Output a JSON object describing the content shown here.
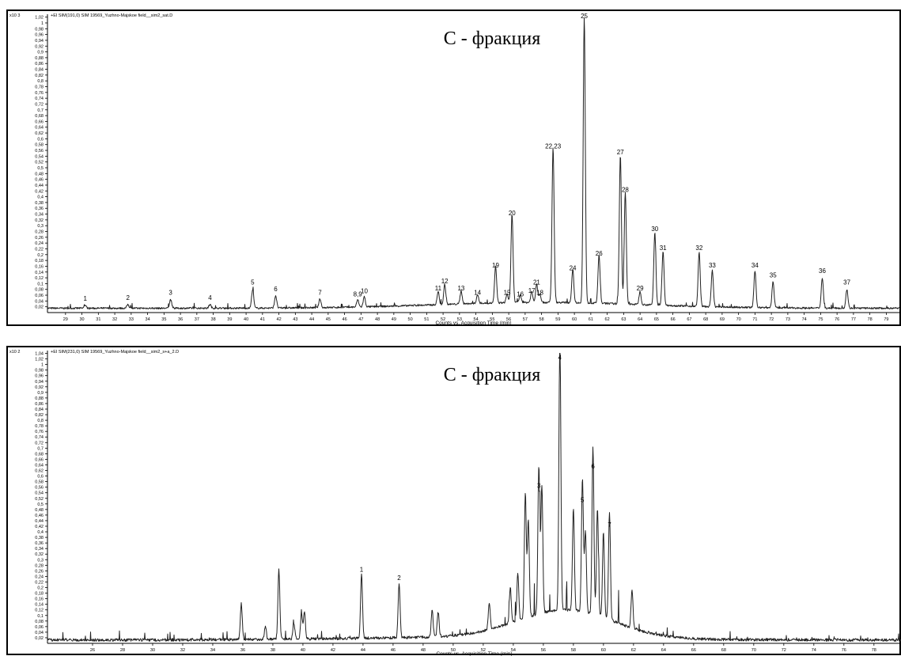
{
  "chart_data": [
    {
      "type": "line",
      "header": "+EI SIM(191,0) SIM 19569_Yuzhno-Majskoe field__sim2_sat.D",
      "exponent_label": "x10 3",
      "title": "С - фракция",
      "xlabel": "Counts vs. Acquisition Time (min)",
      "xlim": [
        27.9,
        79.8
      ],
      "ylim": [
        0,
        1.03
      ],
      "x_ticks": [
        29,
        30,
        31,
        32,
        33,
        34,
        35,
        36,
        37,
        38,
        39,
        40,
        41,
        42,
        43,
        44,
        45,
        46,
        47,
        48,
        49,
        50,
        51,
        52,
        53,
        54,
        55,
        56,
        57,
        58,
        59,
        60,
        61,
        62,
        63,
        64,
        65,
        66,
        67,
        68,
        69,
        70,
        71,
        72,
        73,
        74,
        75,
        76,
        77,
        78,
        79
      ],
      "y_ticks": [
        "0,02",
        "0,04",
        "0,06",
        "0,08",
        "0,1",
        "0,12",
        "0,14",
        "0,16",
        "0,18",
        "0,2",
        "0,22",
        "0,24",
        "0,26",
        "0,28",
        "0,3",
        "0,32",
        "0,34",
        "0,36",
        "0,38",
        "0,4",
        "0,42",
        "0,44",
        "0,46",
        "0,48",
        "0,5",
        "0,52",
        "0,54",
        "0,56",
        "0,58",
        "0,6",
        "0,62",
        "0,64",
        "0,66",
        "0,68",
        "0,7",
        "0,72",
        "0,74",
        "0,76",
        "0,78",
        "0,8",
        "0,82",
        "0,84",
        "0,86",
        "0,88",
        "0,9",
        "0,92",
        "0,94",
        "0,96",
        "0,98",
        "1",
        "1,02"
      ],
      "baseline": 0.015,
      "peaks": [
        {
          "label": "1",
          "x": 30.2,
          "y": 0.025
        },
        {
          "label": "2",
          "x": 32.8,
          "y": 0.028
        },
        {
          "label": "3",
          "x": 35.4,
          "y": 0.045
        },
        {
          "label": "4",
          "x": 37.8,
          "y": 0.028
        },
        {
          "label": "5",
          "x": 40.4,
          "y": 0.08
        },
        {
          "label": "6",
          "x": 41.8,
          "y": 0.058
        },
        {
          "label": "7",
          "x": 44.5,
          "y": 0.045
        },
        {
          "label": "8,9",
          "x": 46.8,
          "y": 0.04
        },
        {
          "label": "10",
          "x": 47.2,
          "y": 0.05
        },
        {
          "label": "11",
          "x": 51.7,
          "y": 0.06
        },
        {
          "label": "12",
          "x": 52.1,
          "y": 0.085
        },
        {
          "label": "13",
          "x": 53.1,
          "y": 0.06
        },
        {
          "label": "14",
          "x": 54.1,
          "y": 0.045
        },
        {
          "label": "15",
          "x": 55.9,
          "y": 0.045
        },
        {
          "label": "16",
          "x": 56.7,
          "y": 0.04
        },
        {
          "label": "17",
          "x": 57.4,
          "y": 0.052
        },
        {
          "label": "18",
          "x": 57.9,
          "y": 0.045
        },
        {
          "label": "19",
          "x": 55.2,
          "y": 0.14
        },
        {
          "label": "20",
          "x": 56.2,
          "y": 0.32
        },
        {
          "label": "21",
          "x": 57.7,
          "y": 0.08
        },
        {
          "label": "22.23",
          "x": 58.7,
          "y": 0.55
        },
        {
          "label": "24",
          "x": 59.9,
          "y": 0.13
        },
        {
          "label": "25",
          "x": 60.6,
          "y": 1.0
        },
        {
          "label": "26",
          "x": 61.5,
          "y": 0.18
        },
        {
          "label": "27",
          "x": 62.8,
          "y": 0.53
        },
        {
          "label": "28",
          "x": 63.1,
          "y": 0.4
        },
        {
          "label": "29",
          "x": 64.0,
          "y": 0.06
        },
        {
          "label": "30",
          "x": 64.9,
          "y": 0.265
        },
        {
          "label": "31",
          "x": 65.4,
          "y": 0.2
        },
        {
          "label": "32",
          "x": 67.6,
          "y": 0.2
        },
        {
          "label": "33",
          "x": 68.4,
          "y": 0.14
        },
        {
          "label": "34",
          "x": 71.0,
          "y": 0.14
        },
        {
          "label": "35",
          "x": 72.1,
          "y": 0.105
        },
        {
          "label": "36",
          "x": 75.1,
          "y": 0.12
        },
        {
          "label": "37",
          "x": 76.6,
          "y": 0.08
        }
      ]
    },
    {
      "type": "line",
      "header": "+EI SIM(231,0) SIM 19569_Yuzhno-Majskoe field__sim2_s+a_2.D",
      "exponent_label": "x10 2",
      "title": "С - фракция",
      "xlabel": "Counts vs. Acquisition Time (min)",
      "xlim": [
        23.0,
        79.8
      ],
      "ylim": [
        0,
        1.05
      ],
      "x_ticks": [
        26,
        28,
        30,
        32,
        34,
        36,
        38,
        40,
        42,
        44,
        46,
        48,
        50,
        52,
        54,
        56,
        58,
        60,
        62,
        64,
        66,
        68,
        70,
        72,
        74,
        76,
        78
      ],
      "y_ticks": [
        "0,02",
        "0,04",
        "0,06",
        "0,08",
        "0,1",
        "0,12",
        "0,14",
        "0,16",
        "0,18",
        "0,2",
        "0,22",
        "0,24",
        "0,26",
        "0,28",
        "0,3",
        "0,32",
        "0,34",
        "0,36",
        "0,38",
        "0,4",
        "0,42",
        "0,44",
        "0,46",
        "0,48",
        "0,5",
        "0,52",
        "0,54",
        "0,56",
        "0,58",
        "0,6",
        "0,62",
        "0,64",
        "0,66",
        "0,68",
        "0,7",
        "0,72",
        "0,74",
        "0,76",
        "0,78",
        "0,8",
        "0,82",
        "0,84",
        "0,86",
        "0,88",
        "0,9",
        "0,92",
        "0,94",
        "0,96",
        "0,98",
        "1",
        "1,02",
        "1,04"
      ],
      "baseline": 0.012,
      "peaks": [
        {
          "label": "1",
          "x": 43.9,
          "y": 0.24
        },
        {
          "label": "2",
          "x": 46.4,
          "y": 0.21
        },
        {
          "label": "3",
          "x": 55.7,
          "y": 0.54
        },
        {
          "label": "4",
          "x": 57.1,
          "y": 1.0
        },
        {
          "label": "5",
          "x": 58.6,
          "y": 0.49
        },
        {
          "label": "6",
          "x": 59.3,
          "y": 0.61
        },
        {
          "label": "7",
          "x": 60.4,
          "y": 0.4
        }
      ],
      "unlabeled_peaks": [
        {
          "x": 35.9,
          "y": 0.14
        },
        {
          "x": 38.4,
          "y": 0.26
        },
        {
          "x": 39.9,
          "y": 0.1
        },
        {
          "x": 40.1,
          "y": 0.11
        },
        {
          "x": 37.5,
          "y": 0.06
        },
        {
          "x": 39.4,
          "y": 0.07
        },
        {
          "x": 48.6,
          "y": 0.11
        },
        {
          "x": 49.0,
          "y": 0.1
        },
        {
          "x": 52.4,
          "y": 0.11
        },
        {
          "x": 54.8,
          "y": 0.46
        },
        {
          "x": 55.0,
          "y": 0.36
        },
        {
          "x": 55.9,
          "y": 0.47
        },
        {
          "x": 58.0,
          "y": 0.38
        },
        {
          "x": 58.8,
          "y": 0.3
        },
        {
          "x": 59.6,
          "y": 0.4
        },
        {
          "x": 60.0,
          "y": 0.32
        },
        {
          "x": 61.9,
          "y": 0.15
        },
        {
          "x": 54.3,
          "y": 0.18
        },
        {
          "x": 53.8,
          "y": 0.14
        }
      ]
    }
  ]
}
